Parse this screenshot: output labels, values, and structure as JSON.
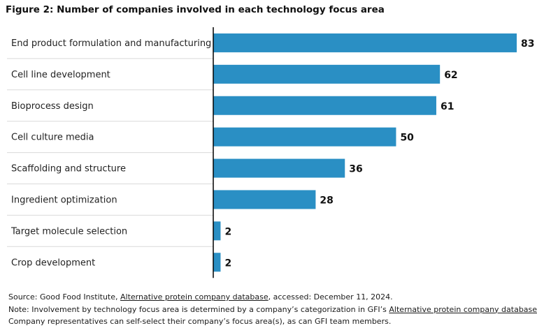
{
  "chart_data": {
    "type": "bar",
    "orientation": "horizontal",
    "title": "Figure 2: Number of companies involved in each technology focus area",
    "categories": [
      "End product formulation and manufacturing",
      "Cell line development",
      "Bioprocess design",
      "Cell culture media",
      "Scaffolding and structure",
      "Ingredient optimization",
      "Target molecule selection",
      "Crop development"
    ],
    "values": [
      83,
      62,
      61,
      50,
      36,
      28,
      2,
      2
    ],
    "xlim": [
      0,
      83
    ],
    "grid": false,
    "bar_color": "#2a8fc4"
  },
  "footer": {
    "source_prefix": "Source: Good Food Institute, ",
    "source_link": "Alternative protein company database",
    "source_suffix": ", accessed: December 11, 2024.",
    "note_prefix": "Note: Involvement by technology focus area is determined by a company’s categorization in GFI’s ",
    "note_link": "Alternative protein company database",
    "note_suffix": ".",
    "note_line2": "Company representatives can self-select their company’s focus area(s), as can GFI team members."
  }
}
